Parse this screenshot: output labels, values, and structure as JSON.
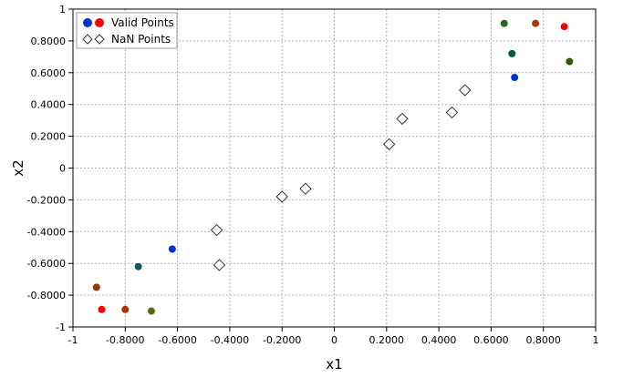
{
  "chart_data": {
    "type": "scatter",
    "title": "",
    "xlabel": "x1",
    "ylabel": "x2",
    "xlim": [
      -1,
      1
    ],
    "ylim": [
      -1,
      1
    ],
    "grid": true,
    "legend_position": "top-left",
    "x_ticks": [
      {
        "value": -1,
        "label": "-1"
      },
      {
        "value": -0.8,
        "label": "-0.8000"
      },
      {
        "value": -0.6,
        "label": "-0.6000"
      },
      {
        "value": -0.4,
        "label": "-0.4000"
      },
      {
        "value": -0.2,
        "label": "-0.2000"
      },
      {
        "value": 0,
        "label": "0"
      },
      {
        "value": 0.2,
        "label": "0.2000"
      },
      {
        "value": 0.4,
        "label": "0.4000"
      },
      {
        "value": 0.6,
        "label": "0.6000"
      },
      {
        "value": 0.8,
        "label": "0.8000"
      },
      {
        "value": 1,
        "label": "1"
      }
    ],
    "y_ticks": [
      {
        "value": -1,
        "label": "-1"
      },
      {
        "value": -0.8,
        "label": "-0.8000"
      },
      {
        "value": -0.6,
        "label": "-0.6000"
      },
      {
        "value": -0.4,
        "label": "-0.4000"
      },
      {
        "value": -0.2,
        "label": "-0.2000"
      },
      {
        "value": 0,
        "label": "0"
      },
      {
        "value": 0.2,
        "label": "0.2000"
      },
      {
        "value": 0.4,
        "label": "0.4000"
      },
      {
        "value": 0.6,
        "label": "0.6000"
      },
      {
        "value": 0.8,
        "label": "0.8000"
      },
      {
        "value": 1,
        "label": "1"
      }
    ],
    "series": [
      {
        "name": "Valid Points",
        "marker": "circle",
        "legend_colors": [
          "#0033cc",
          "#ff0000"
        ],
        "points": [
          {
            "x": 0.69,
            "y": 0.57,
            "color": "#0033cc"
          },
          {
            "x": 0.68,
            "y": 0.72,
            "color": "#0a5a3a"
          },
          {
            "x": 0.65,
            "y": 0.91,
            "color": "#1f6a12"
          },
          {
            "x": 0.77,
            "y": 0.91,
            "color": "#a03a08"
          },
          {
            "x": 0.88,
            "y": 0.89,
            "color": "#ff0000"
          },
          {
            "x": 0.9,
            "y": 0.67,
            "color": "#2d5a06"
          },
          {
            "x": -0.62,
            "y": -0.51,
            "color": "#0033cc"
          },
          {
            "x": -0.75,
            "y": -0.62,
            "color": "#0e5a5a"
          },
          {
            "x": -0.91,
            "y": -0.75,
            "color": "#8a3a08"
          },
          {
            "x": -0.89,
            "y": -0.89,
            "color": "#ff0000"
          },
          {
            "x": -0.8,
            "y": -0.89,
            "color": "#a03a08"
          },
          {
            "x": -0.7,
            "y": -0.9,
            "color": "#5a6a12"
          }
        ]
      },
      {
        "name": "NaN Points",
        "marker": "diamond",
        "points": [
          {
            "x": -0.45,
            "y": -0.39
          },
          {
            "x": -0.44,
            "y": -0.61
          },
          {
            "x": -0.2,
            "y": -0.18
          },
          {
            "x": -0.11,
            "y": -0.13
          },
          {
            "x": 0.21,
            "y": 0.15
          },
          {
            "x": 0.26,
            "y": 0.31
          },
          {
            "x": 0.45,
            "y": 0.35
          },
          {
            "x": 0.5,
            "y": 0.49
          }
        ]
      }
    ]
  }
}
